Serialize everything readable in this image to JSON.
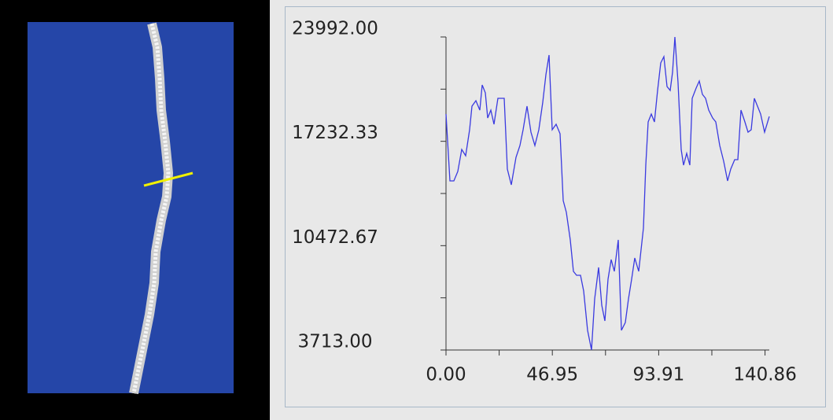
{
  "chart_data": {
    "type": "line",
    "color": "#3a3ae0",
    "xlim": [
      0,
      142.74
    ],
    "ylim": [
      3713,
      23992
    ],
    "xticks": [
      {
        "value": 0,
        "label": "0.00"
      },
      {
        "value": 46.95,
        "label": "46.95"
      },
      {
        "value": 93.91,
        "label": "93.91"
      },
      {
        "value": 140.86,
        "label": "140.86"
      }
    ],
    "minor_xticks": [
      23.48,
      70.43,
      117.38
    ],
    "yticks": [
      {
        "value": 3713,
        "label": "3713.00"
      },
      {
        "value": 10472.67,
        "label": "10472.67"
      },
      {
        "value": 17232.33,
        "label": "17232.33"
      },
      {
        "value": 23992,
        "label": "23992.00"
      }
    ],
    "minor_yticks": [
      7092.83,
      13852.5,
      20612.17
    ],
    "x": [
      0,
      1.74,
      3.47,
      5.21,
      6.95,
      8.68,
      10.42,
      11.46,
      13.2,
      14.93,
      15.98,
      17.37,
      18.41,
      19.8,
      21.19,
      22.92,
      24.31,
      25.7,
      27.09,
      28.83,
      30.91,
      32.65,
      34.04,
      35.77,
      37.51,
      39.24,
      40.98,
      42.72,
      44.11,
      45.5,
      46.89,
      48.62,
      50.36,
      51.75,
      53.14,
      54.87,
      56.26,
      57.65,
      59.39,
      60.78,
      62.51,
      64.25,
      65.64,
      67.38,
      68.77,
      70.15,
      71.54,
      72.93,
      74.32,
      76.06,
      77.45,
      79.18,
      80.57,
      81.96,
      83.35,
      85.09,
      87.17,
      88.21,
      89.26,
      90.65,
      92.03,
      93.42,
      94.81,
      96.2,
      97.59,
      98.98,
      100.02,
      101.06,
      102.45,
      103.84,
      104.88,
      106.27,
      107.66,
      108.7,
      110.44,
      111.83,
      113.22,
      114.61,
      116,
      117.73,
      119.12,
      120.86,
      122.6,
      124.33,
      125.72,
      127.46,
      128.85,
      130.24,
      131.97,
      133.36,
      134.75,
      136.14,
      137.53,
      138.92,
      140.66,
      142.74
    ],
    "values": [
      18998,
      14667,
      14667,
      15279,
      16705,
      16298,
      17979,
      19508,
      19864,
      19253,
      20883,
      20374,
      18743,
      19253,
      18336,
      20017,
      20017,
      20017,
      15432,
      14413,
      16196,
      16960,
      17979,
      19508,
      17826,
      16960,
      17979,
      19762,
      21546,
      22819,
      17979,
      18336,
      17724,
      13394,
      12629,
      10846,
      8808,
      8553,
      8553,
      7534,
      4987,
      3713,
      7025,
      9063,
      6617,
      5598,
      8299,
      9572,
      8808,
      10846,
      4987,
      5496,
      7025,
      8299,
      9674,
      8808,
      11610,
      15686,
      18489,
      18998,
      18489,
      20527,
      22310,
      22717,
      20781,
      20527,
      21698,
      23992,
      21036,
      16705,
      15686,
      16451,
      15686,
      20017,
      20679,
      21138,
      20272,
      20017,
      19253,
      18743,
      18489,
      16960,
      15941,
      14667,
      15432,
      16043,
      16043,
      19253,
      18489,
      17826,
      17979,
      20017,
      19508,
      18998,
      17826,
      18845
    ]
  }
}
